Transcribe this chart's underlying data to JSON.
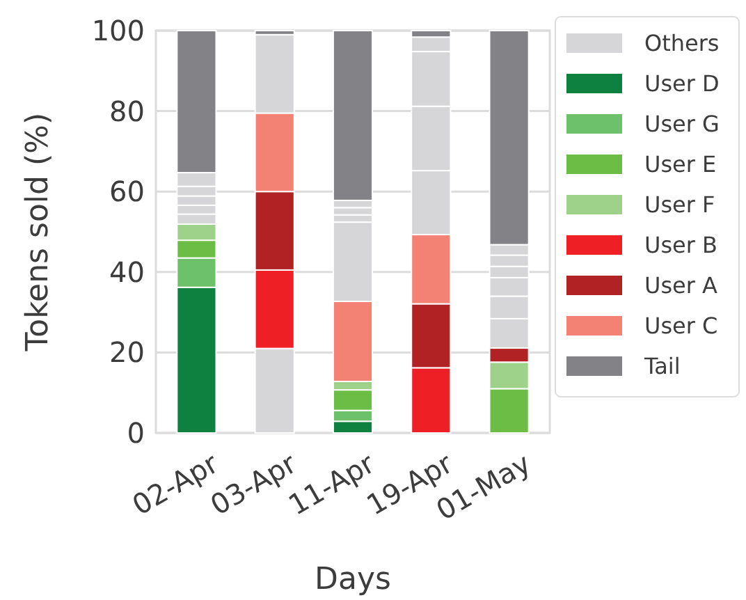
{
  "chart_data": {
    "type": "bar",
    "stacked": true,
    "xlabel": "Days",
    "ylabel": "Tokens sold (%)",
    "categories": [
      "02-Apr",
      "03-Apr",
      "11-Apr",
      "19-Apr",
      "01-May"
    ],
    "ylim": [
      0,
      100
    ],
    "yticks": [
      0,
      20,
      40,
      60,
      80,
      100
    ],
    "grid": true,
    "legend": "right",
    "series": [
      {
        "name": "Others",
        "color": "#d6d6d8",
        "values": [
          null,
          21,
          null,
          null,
          null
        ]
      },
      {
        "name": "User D",
        "color": "#0e8040",
        "values": [
          36.2,
          null,
          2.9,
          null,
          null
        ]
      },
      {
        "name": "User G",
        "color": "#6ec16b",
        "values": [
          7.3,
          null,
          2.7,
          null,
          null
        ]
      },
      {
        "name": "User E",
        "color": "#6bbd45",
        "values": [
          4.4,
          null,
          5.1,
          null,
          11
        ]
      },
      {
        "name": "User F",
        "color": "#9ed18a",
        "values": [
          4,
          null,
          2.1,
          null,
          6.6
        ]
      },
      {
        "name": "User B",
        "color": "#ef2025",
        "values": [
          null,
          19.5,
          null,
          16.2,
          null
        ]
      },
      {
        "name": "User A",
        "color": "#b02224",
        "values": [
          null,
          19.5,
          null,
          15.9,
          3.5
        ]
      },
      {
        "name": "User C",
        "color": "#f38174",
        "values": [
          null,
          19.5,
          19.9,
          17.2,
          null
        ]
      },
      {
        "color": "#d6d6d8",
        "values": [
          2.5,
          19.5,
          19.7,
          15.9,
          7.3
        ]
      },
      {
        "color": "#d6d6d8",
        "values": [
          2.2,
          null,
          1.8,
          16,
          5.6
        ]
      },
      {
        "color": "#d6d6d8",
        "values": [
          2.3,
          null,
          1.8,
          13.6,
          4.6
        ]
      },
      {
        "color": "#d6d6d8",
        "values": [
          2.4,
          null,
          1.8,
          3.6,
          2.8
        ]
      },
      {
        "color": "#d6d6d8",
        "values": [
          3.4,
          null,
          null,
          null,
          2.8
        ]
      },
      {
        "color": "#d6d6d8",
        "values": [
          null,
          null,
          null,
          null,
          2.6
        ]
      },
      {
        "name": "Tail",
        "color": "#838387",
        "values": [
          35.3,
          1,
          42.2,
          1.6,
          53.2
        ]
      }
    ]
  }
}
